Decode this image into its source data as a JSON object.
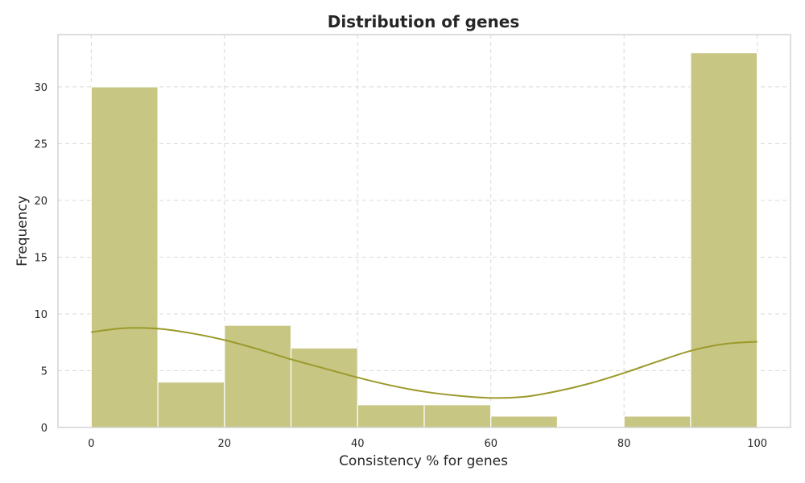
{
  "chart_data": {
    "type": "bar",
    "subtype": "histogram",
    "title": "Distribution of genes",
    "xlabel": "Consistency % for genes",
    "ylabel": "Frequency",
    "bin_edges": [
      0,
      10,
      20,
      30,
      40,
      50,
      60,
      70,
      80,
      90,
      100
    ],
    "values": [
      30,
      4,
      9,
      7,
      2,
      2,
      1,
      0,
      1,
      33
    ],
    "xlim": [
      -5,
      105
    ],
    "ylim": [
      0,
      34.6
    ],
    "xticks": [
      0,
      20,
      40,
      60,
      80,
      100
    ],
    "yticks": [
      0,
      5,
      10,
      15,
      20,
      25,
      30
    ],
    "grid": true,
    "kde": {
      "x": [
        0,
        5,
        10,
        15,
        20,
        25,
        30,
        35,
        40,
        45,
        50,
        55,
        60,
        65,
        70,
        75,
        80,
        85,
        90,
        95,
        100
      ],
      "y": [
        8.4,
        8.75,
        8.7,
        8.3,
        7.7,
        6.9,
        6.0,
        5.2,
        4.4,
        3.7,
        3.15,
        2.8,
        2.6,
        2.7,
        3.2,
        3.9,
        4.8,
        5.8,
        6.75,
        7.35,
        7.55
      ]
    },
    "colors": {
      "bar": "#c7c683",
      "kde": "#9b9a2b"
    }
  }
}
